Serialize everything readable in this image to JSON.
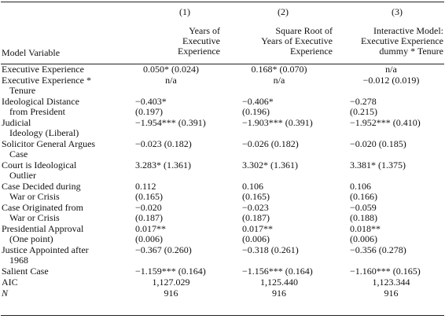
{
  "header": {
    "model_variable": "Model Variable",
    "columns": [
      {
        "number": "(1)",
        "lines": [
          "Years of",
          "Executive",
          "Experience"
        ]
      },
      {
        "number": "(2)",
        "lines": [
          "Square Root of",
          "Years of Executive",
          "Experience"
        ]
      },
      {
        "number": "(3)",
        "lines": [
          "Interactive Model:",
          "Executive Experience",
          "dummy * Tenure"
        ]
      }
    ]
  },
  "rows": [
    {
      "label": [
        "Executive Experience"
      ],
      "center": true,
      "values": [
        "0.050* (0.024)",
        "0.168* (0.070)",
        "n/a"
      ]
    },
    {
      "label": [
        "Executive Experience *",
        "Tenure"
      ],
      "center": true,
      "values": [
        "n/a",
        "n/a",
        "−0.012 (0.019)"
      ]
    },
    {
      "label": [
        "Ideological Distance",
        "from President"
      ],
      "center": false,
      "values": [
        "−0.403*",
        "−0.406*",
        "−0.278"
      ],
      "values2": [
        "(0.197)",
        "(0.196)",
        "(0.215)"
      ]
    },
    {
      "label": [
        "Judicial",
        "Ideology (Liberal)"
      ],
      "center": false,
      "values": [
        "−1.954*** (0.391)",
        "−1.903*** (0.391)",
        "−1.952*** (0.410)"
      ]
    },
    {
      "label": [
        "Solicitor General Argues",
        "Case"
      ],
      "center": false,
      "values": [
        "−0.023 (0.182)",
        "−0.026 (0.182)",
        "−0.020 (0.185)"
      ]
    },
    {
      "label": [
        "Court is Ideological",
        "Outlier"
      ],
      "center": false,
      "values": [
        "3.283* (1.361)",
        "3.302* (1.361)",
        "3.381* (1.375)"
      ]
    },
    {
      "label": [
        "Case Decided during",
        "War or Crisis"
      ],
      "center": false,
      "values": [
        "0.112",
        "0.106",
        "0.106"
      ],
      "values2": [
        "(0.165)",
        "(0.165)",
        "(0.166)"
      ]
    },
    {
      "label": [
        "Case Originated from",
        "War or Crisis"
      ],
      "center": false,
      "values": [
        "−0.020",
        "−0.023",
        "−0.059"
      ],
      "values2": [
        "(0.187)",
        "(0.187)",
        "(0.188)"
      ]
    },
    {
      "label": [
        "Presidential Approval",
        "(One point)"
      ],
      "center": false,
      "values": [
        "0.017**",
        "0.017**",
        "0.018**"
      ],
      "values2": [
        "(0.006)",
        "(0.006)",
        "(0.006)"
      ]
    },
    {
      "label": [
        "Justice Appointed after",
        "1968"
      ],
      "center": false,
      "values": [
        "−0.367 (0.260)",
        "−0.318 (0.261)",
        "−0.356 (0.278)"
      ]
    },
    {
      "label": [
        "Salient Case"
      ],
      "center": false,
      "values": [
        "−1.159*** (0.164)",
        "−1.156*** (0.164)",
        "−1.160*** (0.165)"
      ]
    },
    {
      "label": [
        "AIC"
      ],
      "center": true,
      "values": [
        "1,127.029",
        "1,125.440",
        "1,123.344"
      ]
    },
    {
      "label": [
        "N"
      ],
      "center": true,
      "italic": true,
      "values": [
        "916",
        "916",
        "916"
      ]
    }
  ]
}
